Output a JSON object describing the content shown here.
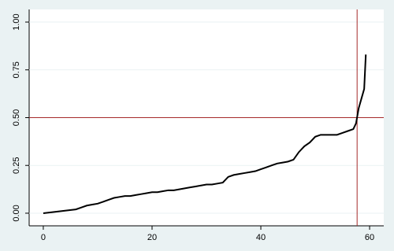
{
  "chart_data": {
    "type": "line",
    "x": [
      0,
      6,
      7,
      8,
      9,
      10,
      11,
      12,
      13,
      14,
      15,
      16,
      17,
      18,
      19,
      20,
      21,
      22,
      23,
      24,
      25,
      26,
      27,
      28,
      29,
      30,
      31,
      32,
      33,
      34,
      35,
      36,
      37,
      38,
      39,
      40,
      41,
      42,
      43,
      44,
      45,
      46,
      47,
      48,
      49,
      50,
      51,
      52,
      53,
      54,
      55,
      56,
      57,
      57.5,
      58,
      58.5,
      59,
      59.3
    ],
    "series": [
      {
        "color": "#000000",
        "values": [
          0,
          0.02,
          0.03,
          0.04,
          0.045,
          0.05,
          0.06,
          0.07,
          0.08,
          0.085,
          0.09,
          0.09,
          0.095,
          0.1,
          0.105,
          0.11,
          0.11,
          0.115,
          0.12,
          0.12,
          0.125,
          0.13,
          0.135,
          0.14,
          0.145,
          0.15,
          0.15,
          0.155,
          0.16,
          0.19,
          0.2,
          0.205,
          0.21,
          0.215,
          0.22,
          0.23,
          0.24,
          0.25,
          0.26,
          0.265,
          0.27,
          0.28,
          0.32,
          0.35,
          0.37,
          0.4,
          0.41,
          0.41,
          0.41,
          0.41,
          0.42,
          0.43,
          0.44,
          0.47,
          0.55,
          0.6,
          0.65,
          0.83
        ]
      }
    ],
    "xlim": [
      -2.6,
      62.6
    ],
    "ylim": [
      -0.066,
      1.066
    ],
    "xticks": [
      0,
      20,
      40,
      60
    ],
    "yticks": [
      {
        "value": 0,
        "label": "0.00"
      },
      {
        "value": 0.25,
        "label": "0.25"
      },
      {
        "value": 0.5,
        "label": "0.50"
      },
      {
        "value": 0.75,
        "label": "0.75"
      },
      {
        "value": 1,
        "label": "1.00"
      }
    ],
    "grid": true,
    "hline": 0.5,
    "vline": 57.7,
    "reference_color": "#a52a2a"
  }
}
